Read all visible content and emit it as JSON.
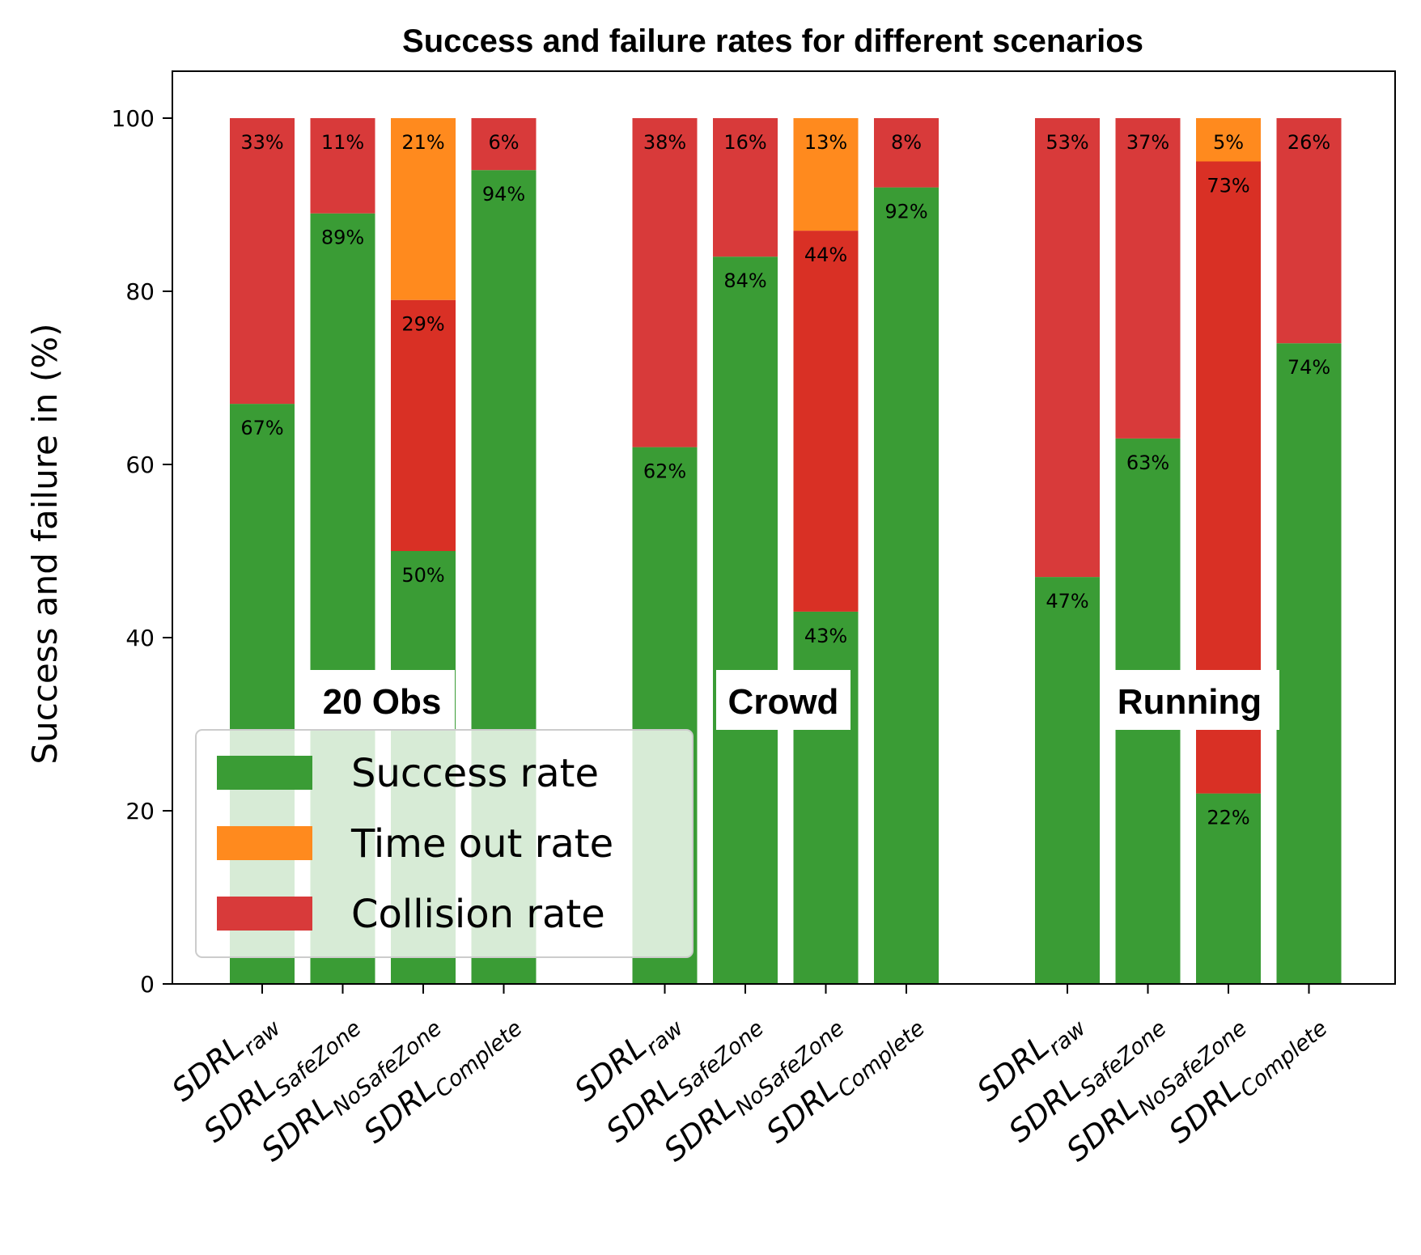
{
  "chart_data": {
    "type": "bar",
    "stacked": true,
    "title": "Success and failure rates for different scenarios",
    "ylabel": "Success and failure in (%)",
    "xlabel": "",
    "ylim": [
      0,
      105
    ],
    "yticks": [
      0,
      20,
      40,
      60,
      80,
      100
    ],
    "legend_position": "bottom-left",
    "series_colors": {
      "success": "#3a9c35",
      "timeout": "#ff8a1e",
      "collision": "#d83a3a",
      "collision_nosafezone": "#d93025"
    },
    "legend": [
      {
        "key": "success",
        "label": "Success rate"
      },
      {
        "key": "timeout",
        "label": "Time out rate"
      },
      {
        "key": "collision",
        "label": "Collision rate"
      }
    ],
    "groups": [
      {
        "label": "20 Obs",
        "bars": [
          {
            "main": "SDRL",
            "sub": "raw",
            "success": 67,
            "timeout": 0,
            "collision": 33
          },
          {
            "main": "SDRL",
            "sub": "SafeZone",
            "success": 89,
            "timeout": 0,
            "collision": 11
          },
          {
            "main": "SDRL",
            "sub": "NoSafeZone",
            "success": 50,
            "timeout": 21,
            "collision": 29
          },
          {
            "main": "SDRL",
            "sub": "Complete",
            "success": 94,
            "timeout": 0,
            "collision": 6
          }
        ]
      },
      {
        "label": "Crowd",
        "bars": [
          {
            "main": "SDRL",
            "sub": "raw",
            "success": 62,
            "timeout": 0,
            "collision": 38
          },
          {
            "main": "SDRL",
            "sub": "SafeZone",
            "success": 84,
            "timeout": 0,
            "collision": 16
          },
          {
            "main": "SDRL",
            "sub": "NoSafeZone",
            "success": 43,
            "timeout": 13,
            "collision": 44
          },
          {
            "main": "SDRL",
            "sub": "Complete",
            "success": 92,
            "timeout": 0,
            "collision": 8
          }
        ]
      },
      {
        "label": "Running",
        "bars": [
          {
            "main": "SDRL",
            "sub": "raw",
            "success": 47,
            "timeout": 0,
            "collision": 53
          },
          {
            "main": "SDRL",
            "sub": "SafeZone",
            "success": 63,
            "timeout": 0,
            "collision": 37
          },
          {
            "main": "SDRL",
            "sub": "NoSafeZone",
            "success": 22,
            "timeout": 5,
            "collision": 73
          },
          {
            "main": "SDRL",
            "sub": "Complete",
            "success": 74,
            "timeout": 0,
            "collision": 26
          }
        ]
      }
    ]
  }
}
